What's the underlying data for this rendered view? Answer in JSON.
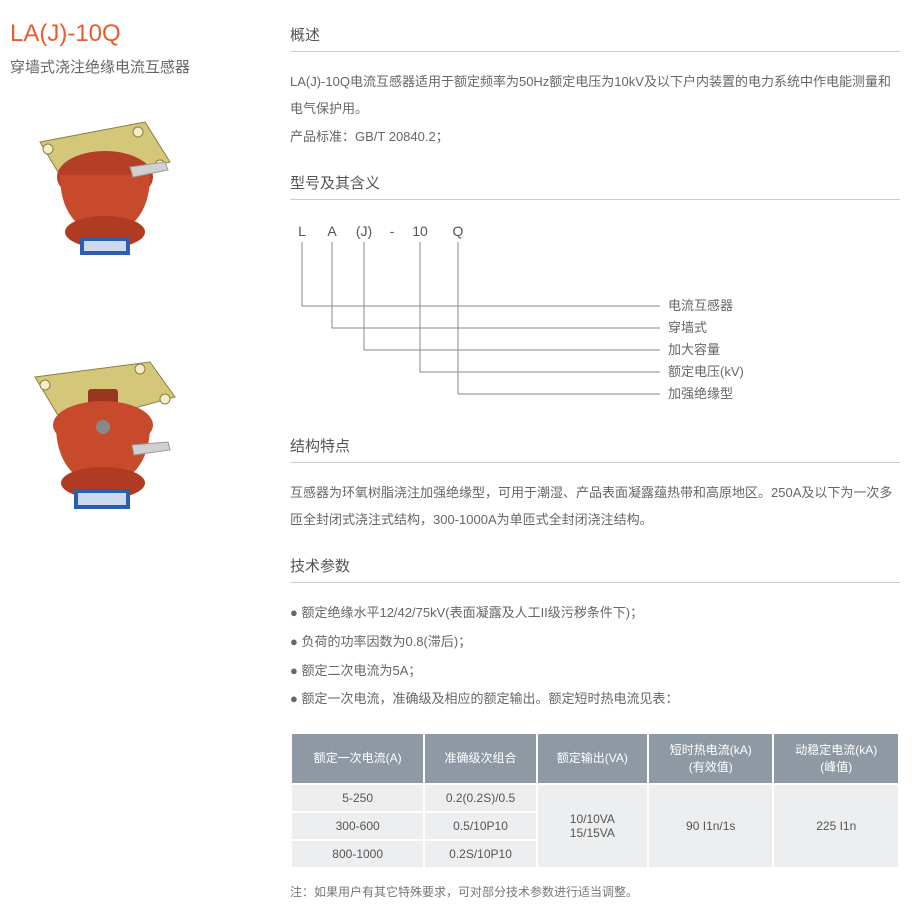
{
  "colors": {
    "accent": "#e85d2b",
    "text": "#555555",
    "textLight": "#666666",
    "tableHeaderBg": "#8f99a3",
    "tableCellBg": "#eceef0",
    "ruleColor": "#cccccc",
    "diagramLine": "#888888"
  },
  "left": {
    "code": "LA(J)-10Q",
    "name": "穿墙式浇注绝缘电流互感器"
  },
  "overview": {
    "title": "概述",
    "body1": "LA(J)-10Q电流互感器适用于额定频率为50Hz额定电压为10kV及以下户内装置的电力系统中作电能测量和电气保护用。",
    "body2": "产品标准：GB/T 20840.2；"
  },
  "model": {
    "title": "型号及其含义",
    "parts": [
      "L",
      "A",
      "(J)",
      "-",
      "10",
      "Q"
    ],
    "labels": [
      "加强绝缘型",
      "额定电压(kV)",
      "加大容量",
      "穿墙式",
      "电流互感器"
    ],
    "layout": {
      "xPositions": [
        12,
        42,
        74,
        102,
        130,
        168
      ],
      "codeY": 20,
      "lineStartX": [
        12,
        42,
        74,
        130,
        168
      ],
      "lineEndY": [
        178,
        156,
        134,
        112,
        90
      ],
      "labelX": 370,
      "lineColor": "#888888",
      "codeFont": 14,
      "labelFont": 13
    }
  },
  "structure": {
    "title": "结构特点",
    "body": "互感器为环氧树脂浇注加强绝缘型，可用于潮湿、产品表面凝露蕴热带和高原地区。250A及以下为一次多匝全封闭式浇注式结构，300-1000A为单匝式全封闭浇注结构。"
  },
  "params": {
    "title": "技术参数",
    "items": [
      "● 额定绝缘水平12/42/75kV(表面凝露及人工II级污秽条件下)；",
      "● 负荷的功率因数为0.8(滞后)；",
      "● 额定二次电流为5A；",
      "● 额定一次电流，准确级及相应的额定输出。额定短时热电流见表："
    ]
  },
  "table": {
    "headers": [
      "额定一次电流(A)",
      "准确级次组合",
      "额定输出(VA)",
      "短时热电流(kA)\n(有效值)",
      "动稳定电流(kA)\n(峰值)"
    ],
    "rows": [
      [
        "5-250",
        "0.2(0.2S)/0.5"
      ],
      [
        "300-600",
        "0.5/10P10"
      ],
      [
        "800-1000",
        "0.2S/10P10"
      ]
    ],
    "merged": {
      "output": "10/10VA\n15/15VA",
      "thermal": "90 I1n/1s",
      "dynamic": "225 I1n"
    }
  },
  "note": "注：如果用户有其它特殊要求，可对部分技术参数进行适当调整。"
}
